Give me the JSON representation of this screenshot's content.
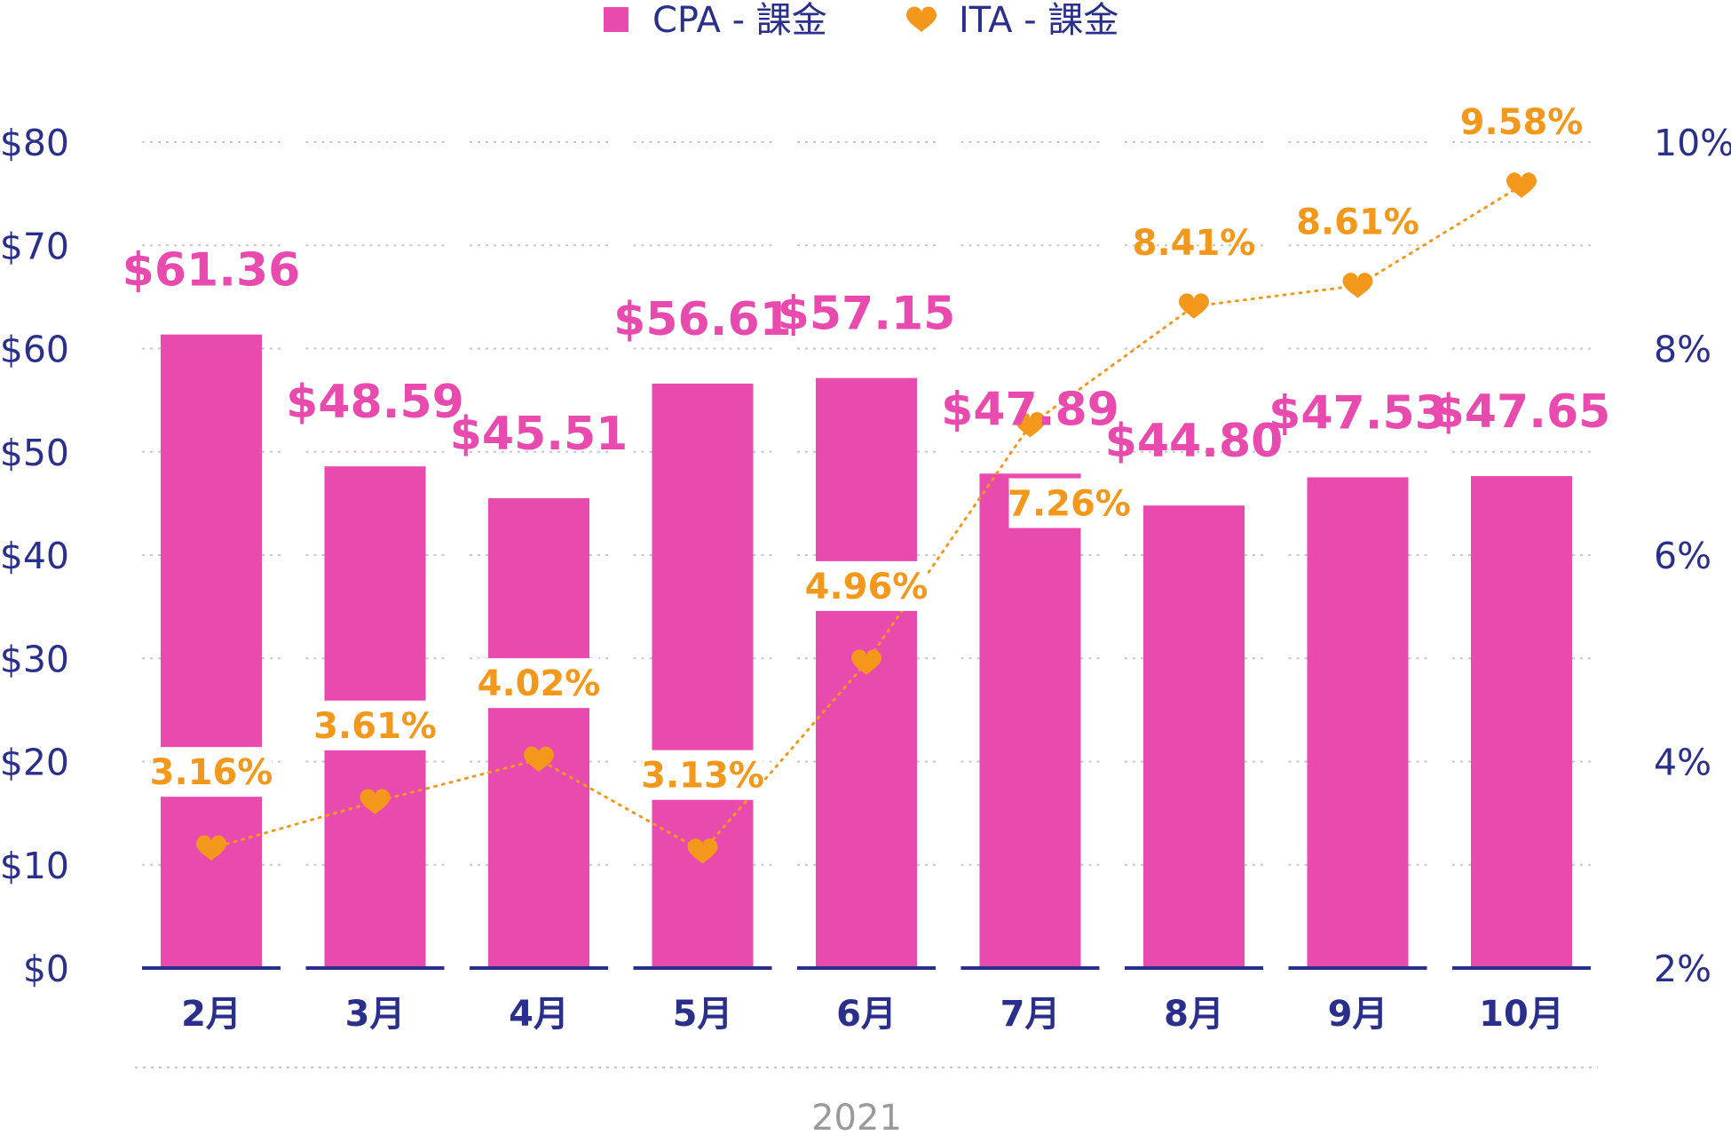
{
  "chart_data": {
    "type": "bar",
    "categories": [
      "2月",
      "3月",
      "4月",
      "5月",
      "6月",
      "7月",
      "8月",
      "9月",
      "10月"
    ],
    "series": [
      {
        "name": "CPA - 課金",
        "kind": "bar",
        "axis": "left",
        "values": [
          61.36,
          48.59,
          45.51,
          56.61,
          57.15,
          47.89,
          44.8,
          47.53,
          47.65
        ],
        "labels": [
          "$61.36",
          "$48.59",
          "$45.51",
          "$56.61",
          "$57.15",
          "$47.89",
          "$44.80",
          "$47.53",
          "$47.65"
        ],
        "color": "#e94aae"
      },
      {
        "name": "ITA - 課金",
        "kind": "line",
        "axis": "right",
        "values": [
          3.16,
          3.61,
          4.02,
          3.13,
          4.96,
          7.26,
          8.41,
          8.61,
          9.58
        ],
        "labels": [
          "3.16%",
          "3.61%",
          "4.02%",
          "3.13%",
          "4.96%",
          "7.26%",
          "8.41%",
          "8.61%",
          "9.58%"
        ],
        "color": "#f4981c"
      }
    ],
    "y_left": {
      "ylim": [
        0,
        80
      ],
      "ticks": [
        0,
        10,
        20,
        30,
        40,
        50,
        60,
        70,
        80
      ],
      "tick_labels": [
        "$0",
        "$10",
        "$20",
        "$30",
        "$40",
        "$50",
        "$60",
        "$70",
        "$80"
      ]
    },
    "y_right": {
      "ylim": [
        2,
        10
      ],
      "ticks": [
        2,
        4,
        6,
        8,
        10
      ],
      "tick_labels": [
        "2%",
        "4%",
        "6%",
        "8%",
        "10%"
      ]
    },
    "xlabel": "2021",
    "legend": {
      "position": "top-center",
      "entries": [
        {
          "label": "CPA - 課金",
          "marker": "square",
          "color": "#e94aae"
        },
        {
          "label": "ITA - 課金",
          "marker": "heart",
          "color": "#f4981c"
        }
      ]
    },
    "grid": true
  }
}
